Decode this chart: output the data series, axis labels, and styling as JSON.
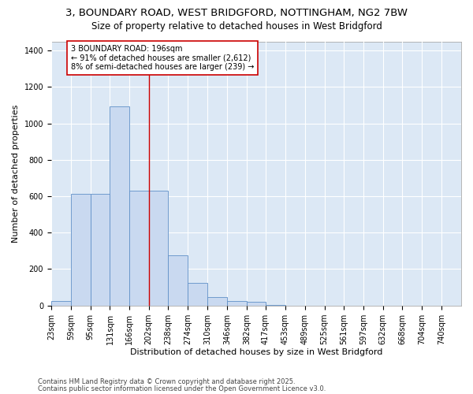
{
  "title_line1": "3, BOUNDARY ROAD, WEST BRIDGFORD, NOTTINGHAM, NG2 7BW",
  "title_line2": "Size of property relative to detached houses in West Bridgford",
  "xlabel": "Distribution of detached houses by size in West Bridgford",
  "ylabel": "Number of detached properties",
  "bin_labels": [
    "23sqm",
    "59sqm",
    "95sqm",
    "131sqm",
    "166sqm",
    "202sqm",
    "238sqm",
    "274sqm",
    "310sqm",
    "346sqm",
    "382sqm",
    "417sqm",
    "453sqm",
    "489sqm",
    "525sqm",
    "561sqm",
    "597sqm",
    "632sqm",
    "668sqm",
    "704sqm",
    "740sqm"
  ],
  "bin_starts": [
    23,
    59,
    95,
    131,
    166,
    202,
    238,
    274,
    310,
    346,
    382,
    417,
    453,
    489,
    525,
    561,
    597,
    632,
    668,
    704,
    740
  ],
  "bar_heights": [
    25,
    615,
    615,
    1095,
    630,
    630,
    275,
    125,
    45,
    25,
    20,
    5,
    0,
    0,
    0,
    0,
    0,
    0,
    0,
    0,
    0
  ],
  "bar_color": "#c9d9f0",
  "bar_edge_color": "#6090c8",
  "vline_x": 202,
  "vline_color": "#cc0000",
  "annotation_text": "3 BOUNDARY ROAD: 196sqm\n← 91% of detached houses are smaller (2,612)\n8% of semi-detached houses are larger (239) →",
  "annotation_box_edge": "#cc0000",
  "annotation_box_face": "#ffffff",
  "ylim": [
    0,
    1450
  ],
  "yticks": [
    0,
    200,
    400,
    600,
    800,
    1000,
    1200,
    1400
  ],
  "fig_bg": "#ffffff",
  "ax_bg": "#dce8f5",
  "grid_color": "#ffffff",
  "footer_line1": "Contains HM Land Registry data © Crown copyright and database right 2025.",
  "footer_line2": "Contains public sector information licensed under the Open Government Licence v3.0.",
  "title_fontsize": 9.5,
  "subtitle_fontsize": 8.5,
  "axis_label_fontsize": 8,
  "tick_fontsize": 7,
  "annotation_fontsize": 7,
  "footer_fontsize": 6
}
